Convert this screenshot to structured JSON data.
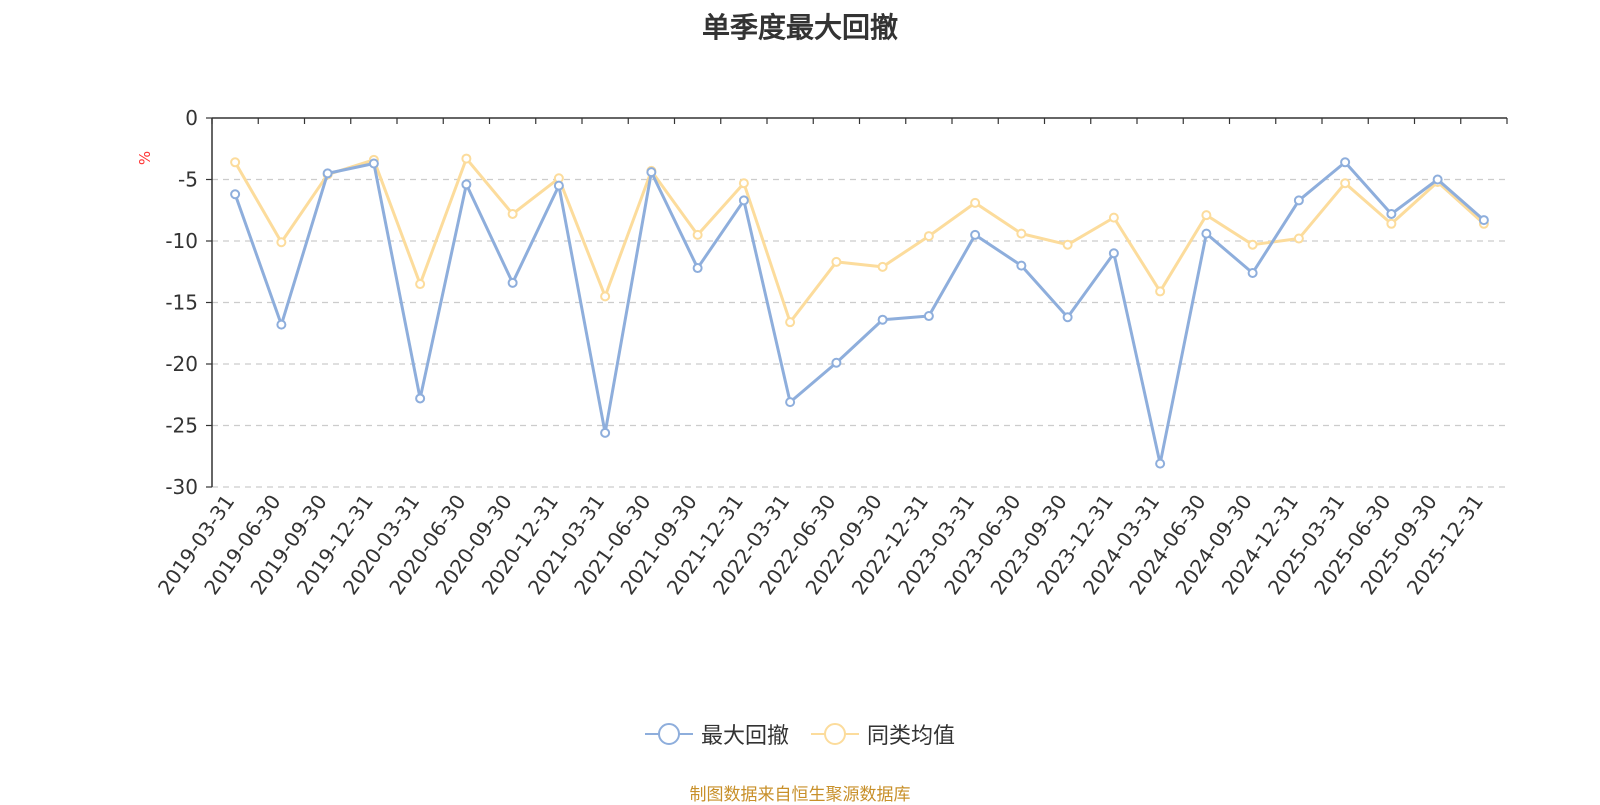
{
  "chart_data": {
    "type": "line",
    "title": "单季度最大回撤",
    "ylabel": "%",
    "ylim": [
      -30,
      0
    ],
    "yticks": [
      0,
      -5,
      -10,
      -15,
      -20,
      -25,
      -30
    ],
    "grid": true,
    "legend_position": "bottom",
    "categories": [
      "2019-03-31",
      "2019-06-30",
      "2019-09-30",
      "2019-12-31",
      "2020-03-31",
      "2020-06-30",
      "2020-09-30",
      "2020-12-31",
      "2021-03-31",
      "2021-06-30",
      "2021-09-30",
      "2021-12-31",
      "2022-03-31",
      "2022-06-30",
      "2022-09-30",
      "2022-12-31",
      "2023-03-31",
      "2023-06-30",
      "2023-09-30",
      "2023-12-31",
      "2024-03-31",
      "2024-06-30",
      "2024-09-30",
      "2024-12-31",
      "2025-03-31",
      "2025-06-30",
      "2025-09-30",
      "2025-12-31"
    ],
    "series": [
      {
        "name": "最大回撤",
        "color": "#8eaedc",
        "values": [
          -6.2,
          -16.8,
          -4.5,
          -3.7,
          -22.8,
          -5.4,
          -13.4,
          -5.5,
          -25.6,
          -4.4,
          -12.2,
          -6.7,
          -23.1,
          -19.9,
          -16.4,
          -16.1,
          -9.5,
          -12.0,
          -16.2,
          -11.0,
          -28.1,
          -9.4,
          -12.6,
          -6.7,
          -3.6,
          -7.8,
          -5.0,
          -8.3
        ]
      },
      {
        "name": "同类均值",
        "color": "#fcdc9c",
        "values": [
          -3.6,
          -10.1,
          -4.6,
          -3.4,
          -13.5,
          -3.3,
          -7.8,
          -4.9,
          -14.5,
          -4.3,
          -9.5,
          -5.3,
          -16.6,
          -11.7,
          -12.1,
          -9.6,
          -6.9,
          -9.4,
          -10.3,
          -8.1,
          -14.1,
          -7.9,
          -10.3,
          -9.8,
          -5.3,
          -8.6,
          -5.2,
          -8.6
        ]
      }
    ]
  },
  "source": "制图数据来自恒生聚源数据库"
}
